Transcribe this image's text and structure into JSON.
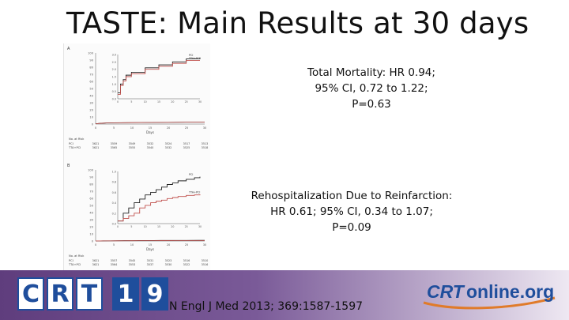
{
  "slide": {
    "title": "TASTE: Main Results at 30 days"
  },
  "results": {
    "mortality": {
      "line1": "Total Mortality: HR 0.94;",
      "line2": "95% CI, 0.72 to 1.22;",
      "line3": "P=0.63"
    },
    "rehospitalization": {
      "line1": "Rehospitalization Due to Reinfarction:",
      "line2": "HR 0.61; 95% CI, 0.34 to 1.07;",
      "line3": "P=0.09"
    }
  },
  "footer": {
    "citation": "N Engl J Med 2013; 369:1587-1597",
    "logo_left_letters": [
      "C",
      "R",
      "T",
      "1",
      "9"
    ],
    "logo_right_a": "CRT",
    "logo_right_b": "online.org"
  },
  "colors": {
    "pci_line": "#222222",
    "tta_pci_line": "#c0504d",
    "brand_blue": "#1f4e9c",
    "band_purple": "#6b4a8a"
  },
  "chart_data": [
    {
      "type": "line",
      "panel": "A",
      "x_ticks": [
        "0",
        "5",
        "10",
        "15",
        "20",
        "25",
        "30"
      ],
      "y_ticks_main": [
        "0",
        "10",
        "20",
        "30",
        "40",
        "50",
        "60",
        "70",
        "80",
        "90",
        "100"
      ],
      "y_ticks_inset": [
        "0.0",
        "0.5",
        "1.0",
        "1.5",
        "2.0",
        "2.5",
        "3.0"
      ],
      "xlabel": "Days",
      "ylim_inset": [
        0,
        3.0
      ],
      "ylim_main": [
        0,
        100
      ],
      "series": [
        {
          "name": "PCI",
          "x": [
            0,
            1,
            2,
            3,
            5,
            10,
            15,
            20,
            25,
            30
          ],
          "y": [
            0.4,
            1.0,
            1.3,
            1.6,
            1.8,
            2.1,
            2.3,
            2.5,
            2.7,
            2.8
          ]
        },
        {
          "name": "TTA+PCI",
          "x": [
            0,
            1,
            2,
            3,
            5,
            10,
            15,
            20,
            25,
            30
          ],
          "y": [
            0.3,
            0.9,
            1.2,
            1.5,
            1.7,
            2.0,
            2.2,
            2.4,
            2.6,
            2.6
          ]
        }
      ],
      "number_at_risk": {
        "header": "No. at Risk",
        "rows": [
          {
            "name": "PCI",
            "values": [
              "3621",
              "3559",
              "3549",
              "3532",
              "3524",
              "3517",
              "3513"
            ]
          },
          {
            "name": "TTA+PCI",
            "values": [
              "3621",
              "3565",
              "3555",
              "3540",
              "3532",
              "3525",
              "3518"
            ]
          }
        ]
      }
    },
    {
      "type": "line",
      "panel": "B",
      "x_ticks": [
        "0",
        "5",
        "10",
        "15",
        "20",
        "25",
        "30"
      ],
      "y_ticks_main": [
        "0",
        "10",
        "20",
        "30",
        "40",
        "50",
        "60",
        "70",
        "80",
        "90",
        "100"
      ],
      "y_ticks_inset": [
        "0.0",
        "0.2",
        "0.4",
        "0.6",
        "0.8",
        "1.0"
      ],
      "xlabel": "Days",
      "ylim_inset": [
        0,
        1.0
      ],
      "ylim_main": [
        0,
        100
      ],
      "series": [
        {
          "name": "PCI",
          "x": [
            0,
            2,
            4,
            6,
            8,
            10,
            12,
            14,
            16,
            18,
            20,
            22,
            25,
            28,
            30
          ],
          "y": [
            0.05,
            0.2,
            0.3,
            0.4,
            0.47,
            0.55,
            0.6,
            0.65,
            0.7,
            0.75,
            0.78,
            0.82,
            0.85,
            0.88,
            0.9
          ]
        },
        {
          "name": "TTA+PCI",
          "x": [
            0,
            2,
            4,
            6,
            8,
            10,
            12,
            14,
            16,
            18,
            20,
            22,
            25,
            28,
            30
          ],
          "y": [
            0.05,
            0.1,
            0.15,
            0.2,
            0.3,
            0.35,
            0.4,
            0.43,
            0.45,
            0.48,
            0.5,
            0.52,
            0.54,
            0.55,
            0.56
          ]
        }
      ],
      "number_at_risk": {
        "header": "No. at Risk",
        "rows": [
          {
            "name": "PCI",
            "values": [
              "3621",
              "3557",
              "3545",
              "3531",
              "3523",
              "3516",
              "3510"
            ]
          },
          {
            "name": "TTA+PCI",
            "values": [
              "3621",
              "3564",
              "3553",
              "3537",
              "3530",
              "3522",
              "3516"
            ]
          }
        ]
      }
    }
  ]
}
